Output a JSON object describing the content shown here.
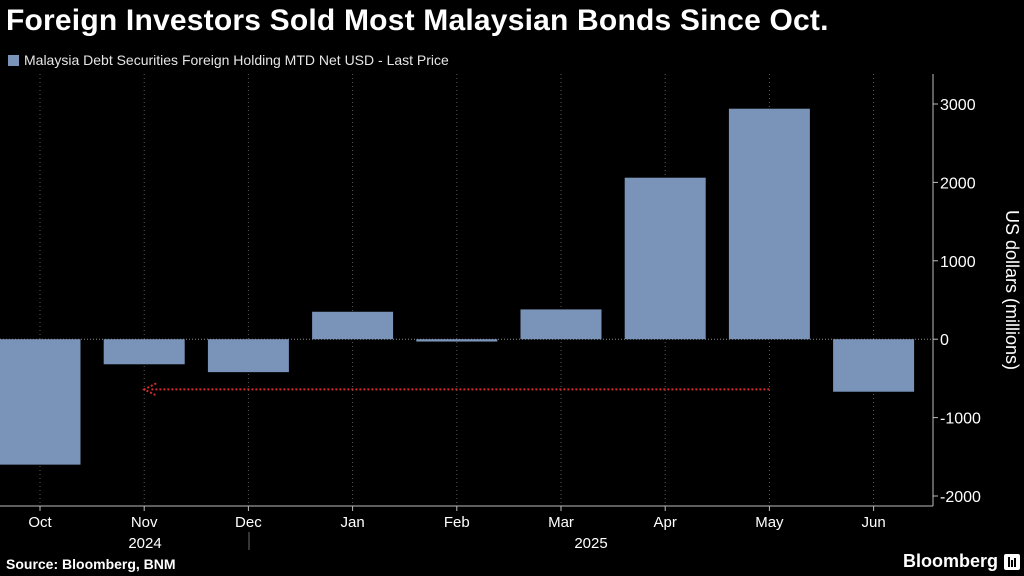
{
  "title": "Foreign Investors Sold Most Malaysian Bonds Since Oct.",
  "source": "Source: Bloomberg, BNM",
  "brand": "Bloomberg",
  "chart_data": {
    "type": "bar",
    "categories": [
      "Oct",
      "Nov",
      "Dec",
      "Jan",
      "Feb",
      "Mar",
      "Apr",
      "May",
      "Jun"
    ],
    "years": [
      {
        "label": "2024"
      },
      {
        "label": "2025"
      }
    ],
    "series": [
      {
        "name": "Malaysia Debt Securities Foreign Holding MTD Net USD - Last Price",
        "values": [
          -1600,
          -320,
          -420,
          350,
          -30,
          380,
          2060,
          2940,
          -670
        ],
        "color": "#7a93b8"
      }
    ],
    "ylabel": "US dollars (millions)",
    "ylim": [
      -2000,
      3400
    ],
    "yticks": [
      -2000,
      -1000,
      0,
      1000,
      2000,
      3000
    ],
    "ytick_labels": [
      "-2000",
      "-1000",
      "0",
      "1000",
      "2000",
      "3000"
    ],
    "grid": "vertical dotted",
    "annotation": {
      "type": "dotted-arrow",
      "from_category": "May",
      "to_category": "Nov",
      "value": -640,
      "color": "#d42c2c"
    }
  }
}
